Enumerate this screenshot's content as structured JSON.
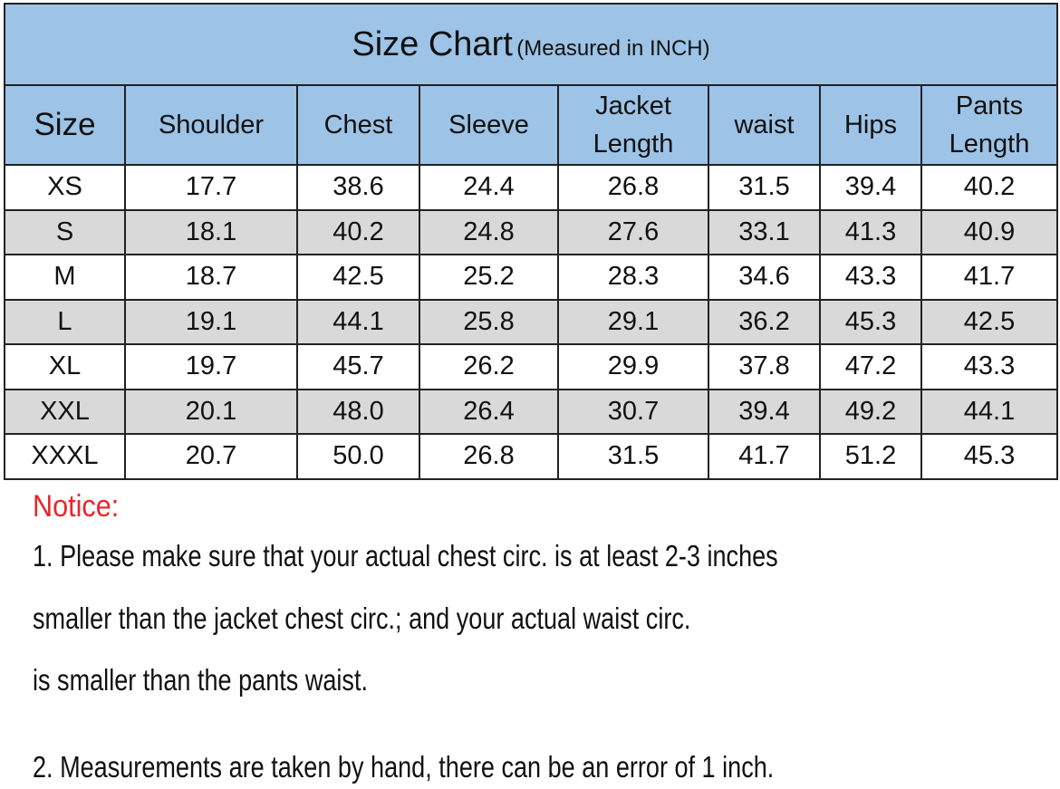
{
  "title": {
    "main": "Size Chart",
    "sub": "(Measured in INCH)"
  },
  "columns": [
    "Size",
    "Shoulder",
    "Chest",
    "Sleeve",
    "Jacket Length",
    "waist",
    "Hips",
    "Pants Length"
  ],
  "rows": [
    [
      "XS",
      "17.7",
      "38.6",
      "24.4",
      "26.8",
      "31.5",
      "39.4",
      "40.2"
    ],
    [
      "S",
      "18.1",
      "40.2",
      "24.8",
      "27.6",
      "33.1",
      "41.3",
      "40.9"
    ],
    [
      "M",
      "18.7",
      "42.5",
      "25.2",
      "28.3",
      "34.6",
      "43.3",
      "41.7"
    ],
    [
      "L",
      "19.1",
      "44.1",
      "25.8",
      "29.1",
      "36.2",
      "45.3",
      "42.5"
    ],
    [
      "XL",
      "19.7",
      "45.7",
      "26.2",
      "29.9",
      "37.8",
      "47.2",
      "43.3"
    ],
    [
      "XXL",
      "20.1",
      "48.0",
      "26.4",
      "30.7",
      "39.4",
      "49.2",
      "44.1"
    ],
    [
      "XXXL",
      "20.7",
      "50.0",
      "26.8",
      "31.5",
      "41.7",
      "51.2",
      "45.3"
    ]
  ],
  "notice": {
    "label": "Notice:",
    "lines": [
      "1. Please make sure that your actual chest circ. is at least 2-3 inches",
      "smaller than the jacket chest circ.; and your actual waist circ.",
      "is smaller than the pants waist.",
      "2. Measurements are taken by hand, there can be an error of 1 inch."
    ]
  },
  "colors": {
    "header": "#9dc3e6",
    "alt_row": "#d9d9d9",
    "notice": "#e8262b"
  }
}
